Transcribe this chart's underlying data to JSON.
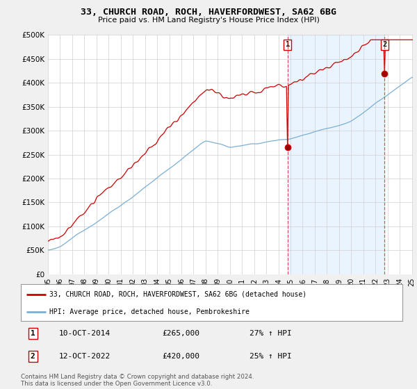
{
  "title": "33, CHURCH ROAD, ROCH, HAVERFORDWEST, SA62 6BG",
  "subtitle": "Price paid vs. HM Land Registry's House Price Index (HPI)",
  "ylabel_ticks": [
    "£0",
    "£50K",
    "£100K",
    "£150K",
    "£200K",
    "£250K",
    "£300K",
    "£350K",
    "£400K",
    "£450K",
    "£500K"
  ],
  "ytick_vals": [
    0,
    50000,
    100000,
    150000,
    200000,
    250000,
    300000,
    350000,
    400000,
    450000,
    500000
  ],
  "ylim": [
    0,
    500000
  ],
  "red_line_color": "#cc0000",
  "blue_line_color": "#7bafd4",
  "blue_fill_color": "#ddeeff",
  "vline_color": "#cc3333",
  "sale1_date": "10-OCT-2014",
  "sale1_price": 265000,
  "sale1_hpi": "27% ↑ HPI",
  "sale2_date": "12-OCT-2022",
  "sale2_price": 420000,
  "sale2_hpi": "25% ↑ HPI",
  "legend_label1": "33, CHURCH ROAD, ROCH, HAVERFORDWEST, SA62 6BG (detached house)",
  "legend_label2": "HPI: Average price, detached house, Pembrokeshire",
  "footer": "Contains HM Land Registry data © Crown copyright and database right 2024.\nThis data is licensed under the Open Government Licence v3.0.",
  "bg_color": "#f0f0f0",
  "plot_bg_color": "#ffffff",
  "start_year": 1995,
  "end_year": 2025
}
